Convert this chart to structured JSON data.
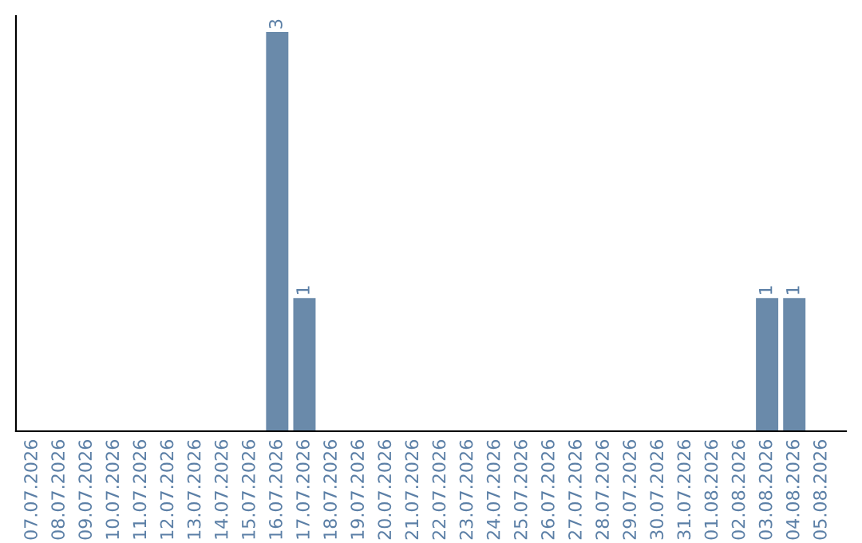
{
  "chart_data": {
    "type": "bar",
    "categories": [
      "07.07.2026",
      "08.07.2026",
      "09.07.2026",
      "10.07.2026",
      "11.07.2026",
      "12.07.2026",
      "13.07.2026",
      "14.07.2026",
      "15.07.2026",
      "16.07.2026",
      "17.07.2026",
      "18.07.2026",
      "19.07.2026",
      "20.07.2026",
      "21.07.2026",
      "22.07.2026",
      "23.07.2026",
      "24.07.2026",
      "25.07.2026",
      "26.07.2026",
      "27.07.2026",
      "28.07.2026",
      "29.07.2026",
      "30.07.2026",
      "31.07.2026",
      "01.08.2026",
      "02.08.2026",
      "03.08.2026",
      "04.08.2026",
      "05.08.2026"
    ],
    "values": [
      0,
      0,
      0,
      0,
      0,
      0,
      0,
      0,
      0,
      3,
      1,
      0,
      0,
      0,
      0,
      0,
      0,
      0,
      0,
      0,
      0,
      0,
      0,
      0,
      0,
      0,
      0,
      1,
      1,
      0
    ],
    "value_labels": [
      null,
      null,
      null,
      null,
      null,
      null,
      null,
      null,
      null,
      "3",
      "1",
      null,
      null,
      null,
      null,
      null,
      null,
      null,
      null,
      null,
      null,
      null,
      null,
      null,
      null,
      null,
      null,
      "1",
      "1",
      null
    ],
    "color": "#6a8aaa",
    "grid": false,
    "legend": false
  }
}
